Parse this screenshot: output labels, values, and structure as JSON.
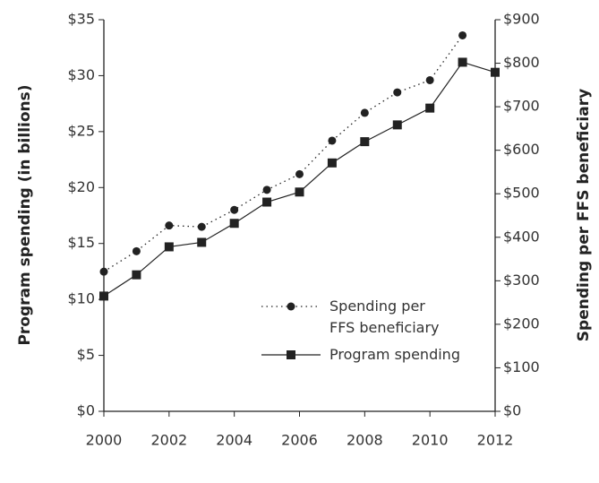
{
  "chart_data": {
    "type": "line",
    "y_label": "Program spending (in billions)",
    "y2_label": "Spending per FFS beneficiary",
    "x": [
      2000,
      2001,
      2002,
      2003,
      2004,
      2005,
      2006,
      2007,
      2008,
      2009,
      2010,
      2011,
      2012
    ],
    "xlim": [
      2000,
      2012
    ],
    "xticks": [
      2000,
      2002,
      2004,
      2006,
      2008,
      2010,
      2012
    ],
    "ylim": [
      0,
      35
    ],
    "yticks": [
      {
        "value": 0,
        "label": "$0"
      },
      {
        "value": 5,
        "label": "$5"
      },
      {
        "value": 10,
        "label": "$10"
      },
      {
        "value": 15,
        "label": "$15"
      },
      {
        "value": 20,
        "label": "$20"
      },
      {
        "value": 25,
        "label": "$25"
      },
      {
        "value": 30,
        "label": "$30"
      },
      {
        "value": 35,
        "label": "$35"
      }
    ],
    "y2lim": [
      0,
      900
    ],
    "y2ticks": [
      {
        "value": 0,
        "label": "$0"
      },
      {
        "value": 100,
        "label": "$100"
      },
      {
        "value": 200,
        "label": "$200"
      },
      {
        "value": 300,
        "label": "$300"
      },
      {
        "value": 400,
        "label": "$400"
      },
      {
        "value": 500,
        "label": "$500"
      },
      {
        "value": 600,
        "label": "$600"
      },
      {
        "value": 700,
        "label": "$700"
      },
      {
        "value": 800,
        "label": "$800"
      },
      {
        "value": 900,
        "label": "$900"
      }
    ],
    "grid": false,
    "legend": "lower right",
    "series": [
      {
        "name": "Spending per FFS beneficiary",
        "color": "#222222",
        "axis": "y2",
        "marker": "circle",
        "linestyle": "dotted",
        "values": [
          321,
          368,
          427,
          424,
          463,
          509,
          545,
          622,
          686,
          733,
          761,
          864,
          null
        ]
      },
      {
        "name": "Program spending",
        "color": "#222222",
        "marker": "square",
        "linestyle": "solid",
        "values": [
          10.3,
          12.2,
          14.7,
          15.1,
          16.8,
          18.7,
          19.6,
          22.2,
          24.1,
          25.6,
          27.1,
          31.2,
          30.3
        ]
      }
    ]
  }
}
